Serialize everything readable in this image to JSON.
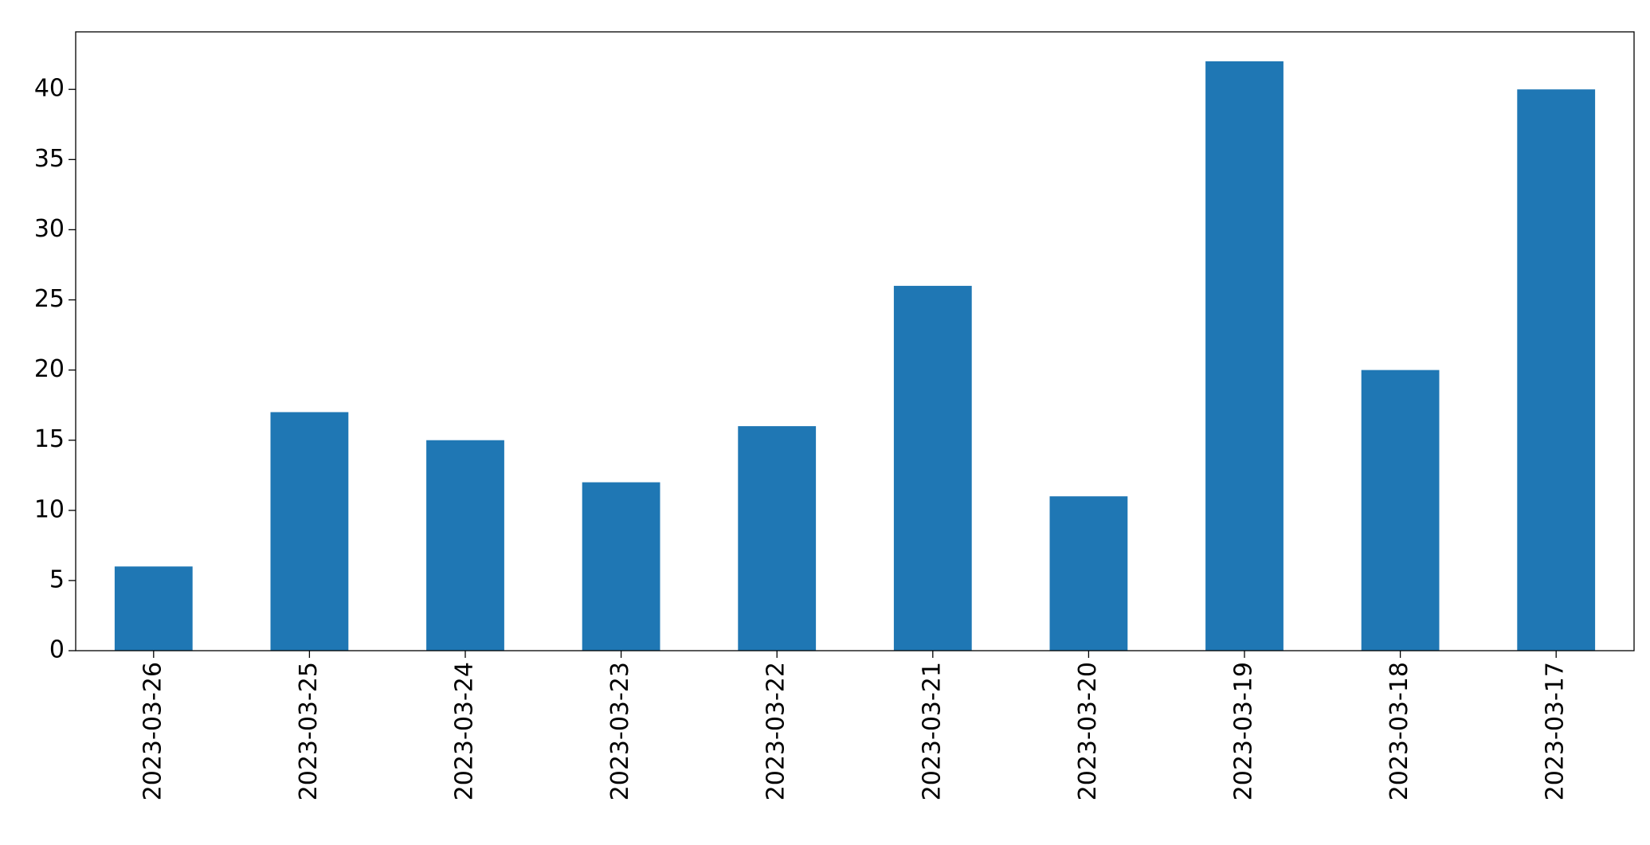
{
  "chart_data": {
    "type": "bar",
    "categories": [
      "2023-03-26",
      "2023-03-25",
      "2023-03-24",
      "2023-03-23",
      "2023-03-22",
      "2023-03-21",
      "2023-03-20",
      "2023-03-19",
      "2023-03-18",
      "2023-03-17"
    ],
    "values": [
      6,
      17,
      15,
      12,
      16,
      26,
      11,
      42,
      20,
      40
    ],
    "color": "#1f77b4",
    "ylim": [
      0,
      44.1
    ],
    "yticks": [
      0,
      5,
      10,
      15,
      20,
      25,
      30,
      35,
      40
    ],
    "grid": false
  }
}
